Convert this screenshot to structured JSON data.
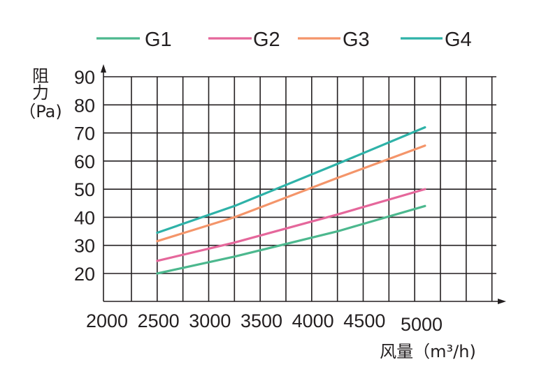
{
  "chart_data": {
    "type": "line",
    "xlabel": "风量（m³/h)",
    "ylabel_line1": "阻",
    "ylabel_line2": "力",
    "ylabel_unit": "（Pa)",
    "xlim": [
      1500,
      5600
    ],
    "ylim": [
      10,
      95
    ],
    "x_ticks": [
      2000,
      2500,
      3000,
      3500,
      4000,
      4500,
      5000
    ],
    "y_ticks": [
      20,
      30,
      40,
      50,
      60,
      70,
      80,
      90
    ],
    "grid_x": [
      2000,
      2250,
      2500,
      2750,
      3000,
      3250,
      3500,
      3750,
      4000,
      4250,
      4500,
      4750,
      5000,
      5250,
      5500
    ],
    "grid_y": [
      20,
      30,
      40,
      50,
      60,
      70,
      80,
      90
    ],
    "grid": true,
    "legend_position": "top",
    "series": [
      {
        "name": "G1",
        "color": "#4cb88e",
        "x": [
          2250,
          3000,
          4000,
          4850
        ],
        "y": [
          20,
          26,
          35,
          44
        ]
      },
      {
        "name": "G2",
        "color": "#e5679b",
        "x": [
          2250,
          3000,
          4000,
          4850
        ],
        "y": [
          24.5,
          31,
          41,
          50
        ]
      },
      {
        "name": "G3",
        "color": "#f4956a",
        "x": [
          2250,
          3000,
          4000,
          4850
        ],
        "y": [
          31.5,
          40,
          54,
          65.5
        ]
      },
      {
        "name": "G4",
        "color": "#2eb2a8",
        "x": [
          2250,
          3000,
          4000,
          4850
        ],
        "y": [
          34.5,
          44,
          59,
          72
        ]
      }
    ]
  }
}
